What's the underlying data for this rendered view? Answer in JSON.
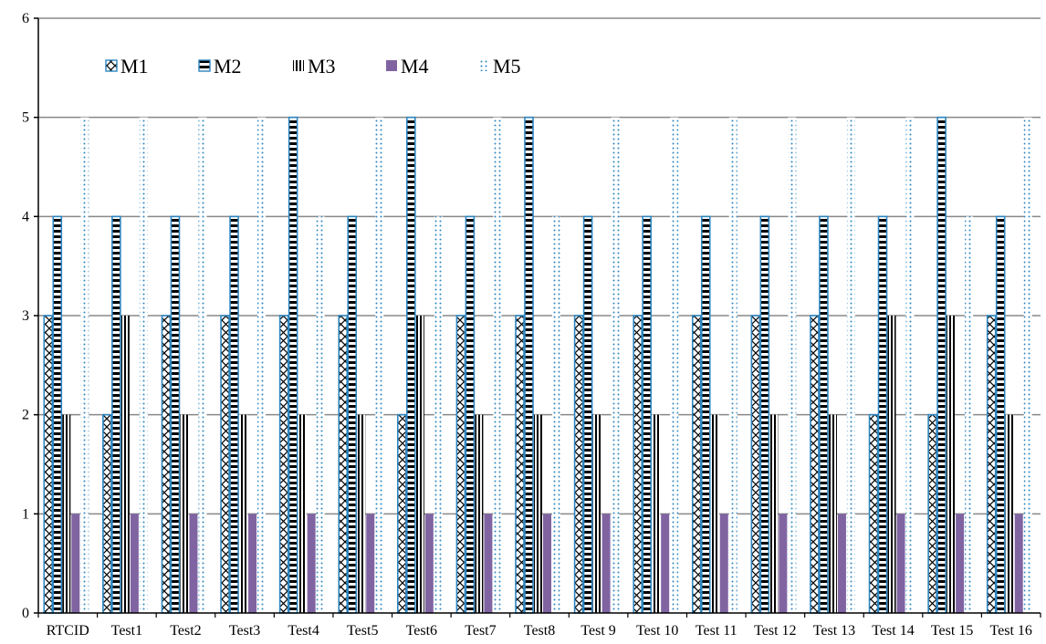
{
  "chart_data": {
    "type": "bar",
    "title": "",
    "xlabel": "",
    "ylabel": "",
    "ylim": [
      0,
      6
    ],
    "yticks": [
      0,
      1,
      2,
      3,
      4,
      5,
      6
    ],
    "grid": true,
    "legend_position": "top-left",
    "categories": [
      "RTCID",
      "Test1",
      "Test2",
      "Test3",
      "Test4",
      "Test5",
      "Test6",
      "Test7",
      "Test8",
      "Test 9",
      "Test 10",
      "Test 11",
      "Test 12",
      "Test 13",
      "Test 14",
      "Test 15",
      "Test 16"
    ],
    "series": [
      {
        "name": "M1",
        "values": [
          3,
          2,
          3,
          3,
          3,
          3,
          2,
          3,
          3,
          3,
          3,
          3,
          3,
          3,
          2,
          2,
          3
        ]
      },
      {
        "name": "M2",
        "values": [
          4,
          4,
          4,
          4,
          5,
          4,
          5,
          4,
          5,
          4,
          4,
          4,
          4,
          4,
          4,
          5,
          4
        ]
      },
      {
        "name": "M3",
        "values": [
          2,
          3,
          2,
          2,
          2,
          2,
          3,
          2,
          2,
          2,
          2,
          2,
          2,
          2,
          3,
          3,
          2
        ]
      },
      {
        "name": "M4",
        "values": [
          1,
          1,
          1,
          1,
          1,
          1,
          1,
          1,
          1,
          1,
          1,
          1,
          1,
          1,
          1,
          1,
          1
        ]
      },
      {
        "name": "M5",
        "values": [
          5,
          5,
          5,
          5,
          4,
          5,
          4,
          5,
          4,
          5,
          5,
          5,
          5,
          5,
          5,
          4,
          5
        ]
      }
    ],
    "colors": {
      "outline": "#2e86c1",
      "m4_fill": "#8064a2",
      "grid": "#888888",
      "text": "#000000"
    }
  }
}
